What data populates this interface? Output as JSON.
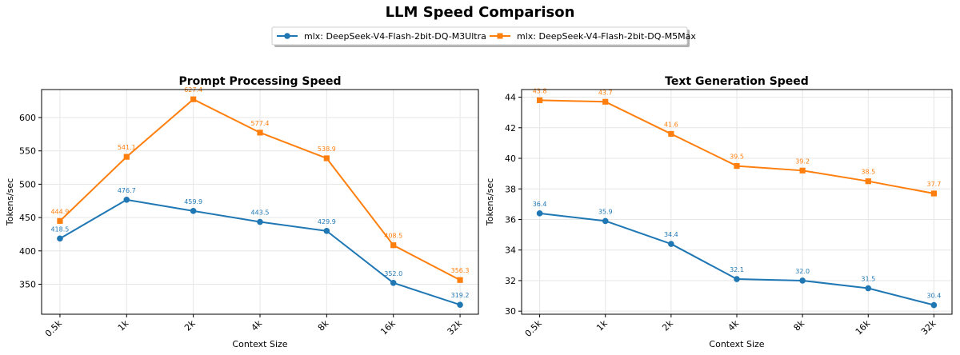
{
  "figure": {
    "title": "LLM Speed Comparison"
  },
  "legend": {
    "placement": "top-center",
    "entries": [
      {
        "label": "mlx: DeepSeek-V4-Flash-2bit-DQ-M3Ultra",
        "color": "#1f77b4",
        "marker": "circle"
      },
      {
        "label": "mlx: DeepSeek-V4-Flash-2bit-DQ-M5Max",
        "color": "#ff7f0e",
        "marker": "square"
      }
    ]
  },
  "chart_data": [
    {
      "type": "line",
      "title": "Prompt Processing Speed",
      "xlabel": "Context Size",
      "ylabel": "Tokens/sec",
      "categories": [
        "0.5k",
        "1k",
        "2k",
        "4k",
        "8k",
        "16k",
        "32k"
      ],
      "yticks": [
        350,
        400,
        450,
        500,
        550,
        600
      ],
      "ylim": [
        305,
        642
      ],
      "grid": true,
      "series": [
        {
          "name": "mlx: DeepSeek-V4-Flash-2bit-DQ-M3Ultra",
          "color": "#1f77b4",
          "marker": "circle",
          "values": [
            418.5,
            476.7,
            459.9,
            443.5,
            429.9,
            352.0,
            319.2
          ],
          "labels": [
            "418.5",
            "476.7",
            "459.9",
            "443.5",
            "429.9",
            "352.0",
            "319.2"
          ]
        },
        {
          "name": "mlx: DeepSeek-V4-Flash-2bit-DQ-M5Max",
          "color": "#ff7f0e",
          "marker": "square",
          "values": [
            444.9,
            541.1,
            627.4,
            577.4,
            538.9,
            408.5,
            356.3
          ],
          "labels": [
            "444.9",
            "541.1",
            "627.4",
            "577.4",
            "538.9",
            "408.5",
            "356.3"
          ]
        }
      ]
    },
    {
      "type": "line",
      "title": "Text Generation Speed",
      "xlabel": "Context Size",
      "ylabel": "Tokens/sec",
      "categories": [
        "0.5k",
        "1k",
        "2k",
        "4k",
        "8k",
        "16k",
        "32k"
      ],
      "yticks": [
        30,
        32,
        34,
        36,
        38,
        40,
        42,
        44
      ],
      "ylim": [
        29.8,
        44.5
      ],
      "grid": true,
      "series": [
        {
          "name": "mlx: DeepSeek-V4-Flash-2bit-DQ-M3Ultra",
          "color": "#1f77b4",
          "marker": "circle",
          "values": [
            36.4,
            35.9,
            34.4,
            32.1,
            32.0,
            31.5,
            30.4
          ],
          "labels": [
            "36.4",
            "35.9",
            "34.4",
            "32.1",
            "32.0",
            "31.5",
            "30.4"
          ]
        },
        {
          "name": "mlx: DeepSeek-V4-Flash-2bit-DQ-M5Max",
          "color": "#ff7f0e",
          "marker": "square",
          "values": [
            43.8,
            43.7,
            41.6,
            39.5,
            39.2,
            38.5,
            37.7
          ],
          "labels": [
            "43.8",
            "43.7",
            "41.6",
            "39.5",
            "39.2",
            "38.5",
            "37.7"
          ]
        }
      ]
    }
  ]
}
